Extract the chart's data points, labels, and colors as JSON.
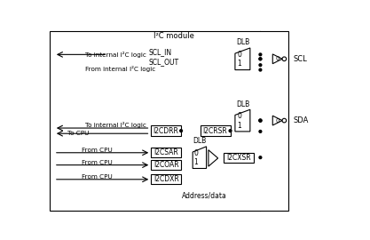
{
  "title": "I²C module",
  "bg_color": "#ffffff",
  "text_color": "#000000",
  "font_size": 6.0,
  "font_size_small": 5.5,
  "fig_width": 4.17,
  "fig_height": 2.7,
  "dpi": 100,
  "labels": {
    "scl_in": "SCL_IN",
    "scl_out": "SCL_OUT",
    "scl": "SCL",
    "sda": "SDA",
    "to_internal_i2c_1": "To internal I²C logic",
    "from_internal_i2c": "From internal I²C logic",
    "to_internal_i2c_2": "To internal I²C logic",
    "to_cpu": "To CPU",
    "from_cpu1": "From CPU",
    "from_cpu2": "From CPU",
    "from_cpu3": "From CPU",
    "dlb": "DLB",
    "i2cdrr": "I2CDRR",
    "i2crsr": "I2CRSR",
    "i2csar": "I2CSAR",
    "i2coar": "I2COAR",
    "i2cdxr": "I2CDXR",
    "i2cxsr": "I2CXSR",
    "address_data": "Address/data",
    "zero": "0",
    "one": "1"
  }
}
